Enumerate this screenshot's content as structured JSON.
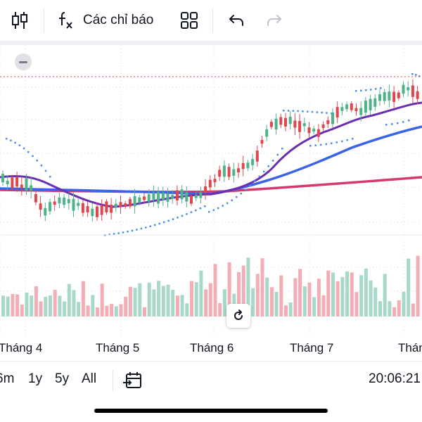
{
  "toolbar": {
    "indicators_label": "Các chỉ báo",
    "icons": [
      "candlestick-icon",
      "function-icon",
      "layout-grid-icon",
      "undo-icon",
      "redo-icon"
    ]
  },
  "chart_data": {
    "type": "candlestick",
    "x_axis_labels": [
      "Tháng 4",
      "Tháng 5",
      "Tháng 6",
      "Tháng 7",
      "Tháng"
    ],
    "colors": {
      "up": "#4fb38a",
      "down": "#e0464e",
      "volume_up": "#a8d8c8",
      "volume_down": "#f2aeb4",
      "ma_short": "#6a2fb0",
      "ma_mid": "#3a63e8",
      "ma_long": "#d63a6a",
      "sar": "#4a8ee8"
    },
    "series": [
      {
        "name": "MA short"
      },
      {
        "name": "MA medium"
      },
      {
        "name": "MA long"
      },
      {
        "name": "Parabolic SAR"
      }
    ]
  },
  "bottom_bar": {
    "ranges": [
      "6m",
      "1y",
      "5y",
      "All"
    ],
    "time": "20:06:21"
  }
}
